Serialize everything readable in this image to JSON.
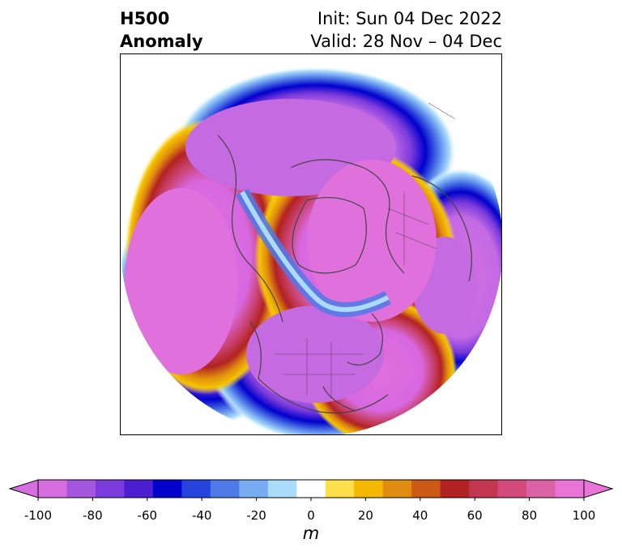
{
  "header": {
    "title_line1": "H500",
    "title_line2": "Anomaly",
    "init": "Init: Sun 04 Dec 2022",
    "valid": "Valid: 28 Nov – 04 Dec"
  },
  "map": {
    "projection": "north polar stereographic",
    "field": "500 hPa geopotential height anomaly"
  },
  "colorbar": {
    "unit": "m",
    "ticks": [
      "-100",
      "-80",
      "-60",
      "-40",
      "-20",
      "0",
      "20",
      "40",
      "60",
      "80",
      "100"
    ],
    "levels": [
      -100,
      -90,
      -80,
      -70,
      -60,
      -50,
      -40,
      -30,
      -20,
      -10,
      10,
      20,
      30,
      40,
      50,
      60,
      70,
      80,
      90,
      100
    ],
    "colors": [
      "#d66ee0",
      "#a456de",
      "#7b3bdc",
      "#4c1ed2",
      "#0000cc",
      "#2444dd",
      "#4f7ae8",
      "#78acf0",
      "#aadcfa",
      "#ffffff",
      "#ffe04a",
      "#f5b800",
      "#e08c10",
      "#cc5a14",
      "#b22222",
      "#c23650",
      "#d24a7c",
      "#dc62a8",
      "#e874d8"
    ],
    "extend_low_color": "#d66ee0",
    "extend_high_color": "#e874d8"
  }
}
